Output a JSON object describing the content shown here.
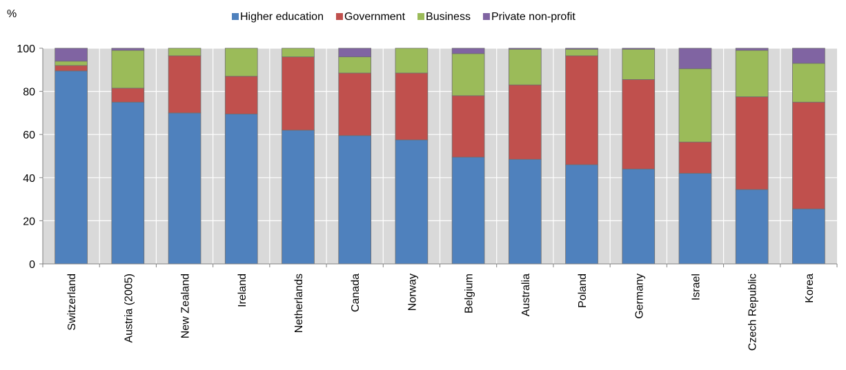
{
  "chart_data": {
    "type": "bar",
    "stacked": true,
    "unit_label": "%",
    "categories": [
      "Switzerland",
      "Austria (2005)",
      "New Zealand",
      "Ireland",
      "Netherlands",
      "Canada",
      "Norway",
      "Belgium",
      "Australia",
      "Poland",
      "Germany",
      "Israel",
      "Czech Republic",
      "Korea"
    ],
    "series": [
      {
        "name": "Higher education",
        "color": "#4f81bd",
        "values": [
          89.5,
          75,
          70,
          69.5,
          62,
          59.5,
          57.5,
          49.5,
          48.5,
          46,
          44,
          42,
          34.5,
          25.5
        ]
      },
      {
        "name": "Government",
        "color": "#c0504d",
        "values": [
          2.5,
          6.5,
          26.5,
          17.5,
          34,
          29,
          31,
          28.5,
          34.5,
          50.5,
          41.5,
          14.5,
          43,
          49.5
        ]
      },
      {
        "name": "Business",
        "color": "#9bbb59",
        "values": [
          2,
          17.5,
          3.5,
          13,
          4,
          7.5,
          11.5,
          19.5,
          16.5,
          3,
          14,
          34,
          21.5,
          18
        ]
      },
      {
        "name": "Private non-profit",
        "color": "#8064a2",
        "values": [
          6,
          1,
          0,
          0,
          0,
          4,
          0,
          2.5,
          0.5,
          0.5,
          0.5,
          9.5,
          1,
          7
        ]
      }
    ],
    "y_ticks": [
      0,
      20,
      40,
      60,
      80,
      100
    ],
    "ylim": [
      0,
      100
    ],
    "grid": true,
    "legend_position": "top"
  }
}
